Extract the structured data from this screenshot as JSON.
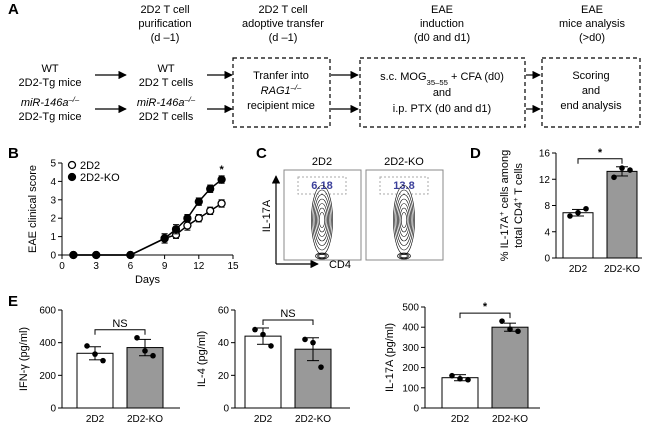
{
  "panel_labels": [
    "A",
    "B",
    "C",
    "D",
    "E"
  ],
  "panel_a": {
    "headers": [
      [
        "2D2 T cell",
        "purification",
        "(d –1)"
      ],
      [
        "2D2 T cell",
        "adoptive transfer",
        "(d –1)"
      ],
      [
        "EAE",
        "induction",
        "(d0 and d1)"
      ],
      [
        "EAE",
        "mice analysis",
        "(>d0)"
      ]
    ],
    "donors": [
      [
        "WT",
        "2D2-Tg mice"
      ],
      [
        [
          {
            "text": "miR-146a",
            "format": "italic"
          },
          {
            "text": "–/–",
            "format": "italic-sup"
          }
        ],
        "2D2-Tg mice"
      ]
    ],
    "cells": [
      [
        "WT",
        "2D2 T cells"
      ],
      [
        [
          {
            "text": "miR-146a",
            "format": "italic"
          },
          {
            "text": "–/–",
            "format": "italic-sup"
          }
        ],
        "2D2 T cells"
      ]
    ],
    "boxes": [
      [
        "Tranfer into",
        [
          {
            "text": "RAG1",
            "format": "italic"
          },
          {
            "text": "–/–",
            "format": "italic-sup"
          }
        ],
        "recipient mice"
      ],
      [
        [
          "s.c. MOG",
          {
            "text": "35–55",
            "format": "sub"
          },
          " + CFA (d0)"
        ],
        "and",
        "i.p. PTX (d0 and d1)"
      ],
      [
        "Scoring",
        "and",
        "end analysis"
      ]
    ]
  },
  "flow": {
    "y_label": "IL-17A",
    "x_label": "CD4",
    "plots": [
      {
        "title": "2D2",
        "value": 6.18
      },
      {
        "title": "2D2-KO",
        "value": 13.8
      }
    ],
    "value_color": "#3b3f9a"
  },
  "chart_data": [
    {
      "type": "line",
      "xlabel": "Days",
      "ylabel": [
        "EAE clinical score"
      ],
      "x": [
        1,
        3,
        6,
        9,
        10,
        11,
        12,
        13,
        14
      ],
      "series": [
        {
          "name": "2D2",
          "color": "#000000",
          "fill": "#ffffff",
          "values": [
            0,
            0,
            0,
            0.9,
            1.1,
            1.6,
            2.0,
            2.4,
            2.8
          ],
          "errors": [
            0,
            0,
            0,
            0.25,
            0.2,
            0.25,
            0.2,
            0.2,
            0.2
          ]
        },
        {
          "name": "2D2-KO",
          "color": "#000000",
          "fill": "#000000",
          "values": [
            0,
            0,
            0,
            0.9,
            1.4,
            2.0,
            2.9,
            3.6,
            4.1
          ],
          "errors": [
            0,
            0,
            0,
            0.25,
            0.25,
            0.2,
            0.2,
            0.2,
            0.2
          ]
        }
      ],
      "xlim": [
        0,
        15
      ],
      "xticks": [
        0,
        3,
        6,
        9,
        12,
        15
      ],
      "ylim": [
        0,
        5
      ],
      "yticks": [
        0,
        1,
        2,
        3,
        4,
        5
      ],
      "annotation": "*",
      "legend": "upper-left"
    },
    {
      "type": "bar",
      "ylabel": [
        [
          {
            "text": "% IL-17A"
          },
          {
            "text": "+",
            "format": "sup"
          },
          " cells among"
        ],
        [
          {
            "text": "total CD4"
          },
          {
            "text": "+",
            "format": "sup"
          },
          " T cells"
        ]
      ],
      "categories": [
        "2D2",
        "2D2-KO"
      ],
      "values": [
        6.9,
        13.2
      ],
      "errors": [
        0.5,
        0.7
      ],
      "points": [
        [
          6.4,
          6.9,
          7.5
        ],
        [
          12.3,
          13.7,
          13.4
        ]
      ],
      "colors": [
        "#ffffff",
        "#999999"
      ],
      "ylim": [
        0,
        16
      ],
      "yticks": [
        0,
        4,
        8,
        12,
        16
      ],
      "annotation": "*"
    },
    {
      "type": "bar",
      "ylabel": [
        "IFN-γ (pg/ml)"
      ],
      "categories": [
        "2D2",
        "2D2-KO"
      ],
      "values": [
        335,
        370
      ],
      "errors": [
        40,
        50
      ],
      "points": [
        [
          380,
          330,
          290
        ],
        [
          430,
          350,
          320
        ]
      ],
      "colors": [
        "#ffffff",
        "#999999"
      ],
      "ylim": [
        0,
        600
      ],
      "yticks": [
        0,
        200,
        400,
        600
      ],
      "annotation": "NS"
    },
    {
      "type": "bar",
      "ylabel": [
        "IL-4 (pg/ml)"
      ],
      "categories": [
        "2D2",
        "2D2-KO"
      ],
      "values": [
        44,
        36
      ],
      "errors": [
        5,
        7
      ],
      "points": [
        [
          48,
          45,
          38
        ],
        [
          42,
          40,
          25
        ]
      ],
      "colors": [
        "#ffffff",
        "#999999"
      ],
      "ylim": [
        0,
        60
      ],
      "yticks": [
        0,
        20,
        40,
        60
      ],
      "annotation": "NS"
    },
    {
      "type": "bar",
      "ylabel": [
        "IL-17A (pg/ml)"
      ],
      "categories": [
        "2D2",
        "2D2-KO"
      ],
      "values": [
        150,
        400
      ],
      "errors": [
        15,
        20
      ],
      "points": [
        [
          160,
          145,
          140
        ],
        [
          430,
          390,
          380
        ]
      ],
      "colors": [
        "#ffffff",
        "#999999"
      ],
      "ylim": [
        0,
        500
      ],
      "yticks": [
        0,
        100,
        200,
        300,
        400,
        500
      ],
      "annotation": "*"
    }
  ]
}
